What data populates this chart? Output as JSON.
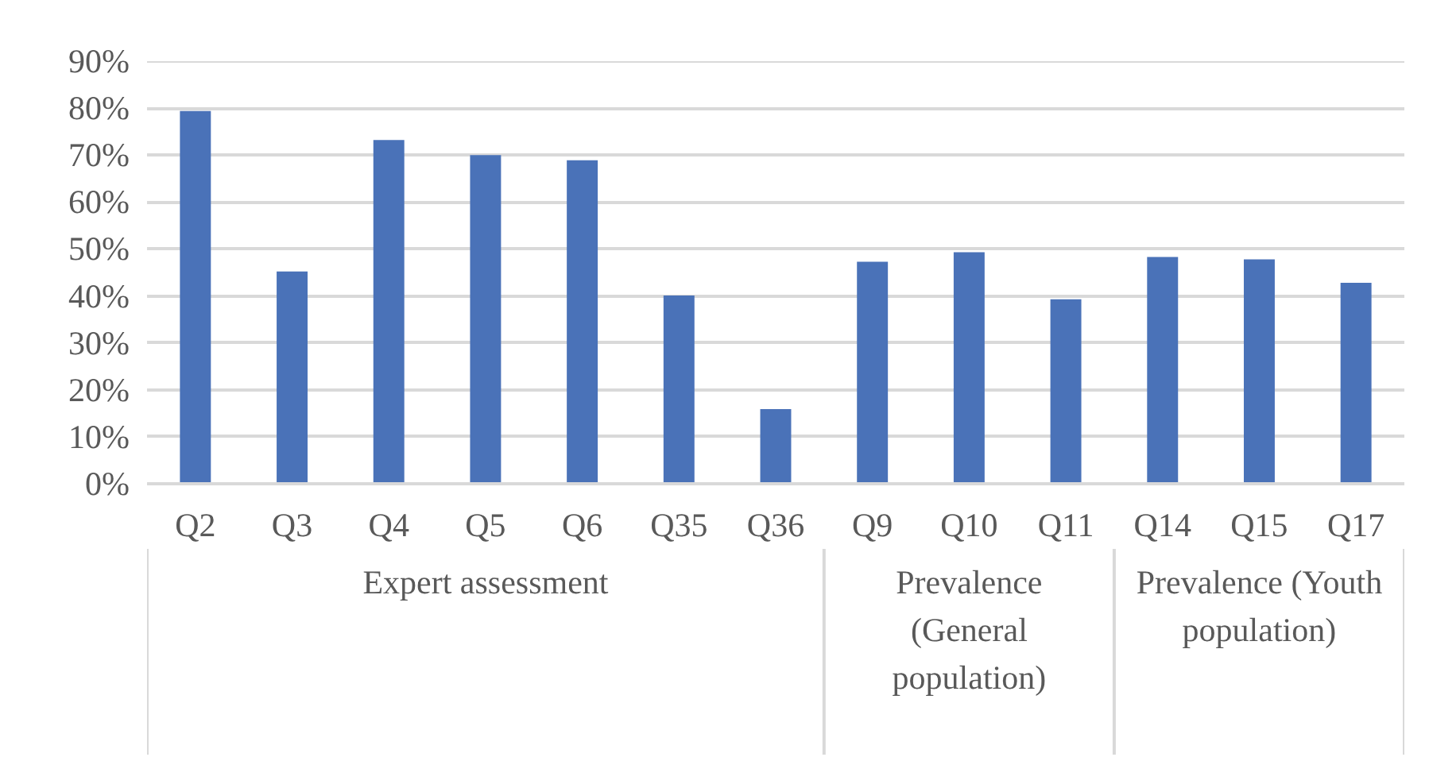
{
  "chart_data": {
    "type": "bar",
    "categories": [
      "Q2",
      "Q3",
      "Q4",
      "Q5",
      "Q6",
      "Q35",
      "Q36",
      "Q9",
      "Q10",
      "Q11",
      "Q14",
      "Q15",
      "Q17"
    ],
    "values": [
      79.4,
      45.2,
      73.2,
      70.0,
      68.9,
      40.1,
      15.9,
      47.3,
      49.3,
      39.3,
      48.3,
      47.8,
      42.8
    ],
    "color": "#4a72b8",
    "ylim": [
      0,
      90
    ],
    "yticks": [
      {
        "value": 0,
        "label": "0%"
      },
      {
        "value": 10,
        "label": "10%"
      },
      {
        "value": 20,
        "label": "20%"
      },
      {
        "value": 30,
        "label": "30%"
      },
      {
        "value": 40,
        "label": "40%"
      },
      {
        "value": 50,
        "label": "50%"
      },
      {
        "value": 60,
        "label": "60%"
      },
      {
        "value": 70,
        "label": "70%"
      },
      {
        "value": 80,
        "label": "80%"
      },
      {
        "value": 90,
        "label": "90%"
      }
    ],
    "grid": "y",
    "annotations": [
      "Expert assessment",
      "Prevalence (General population)",
      "Prevalence (Youth population)"
    ]
  }
}
